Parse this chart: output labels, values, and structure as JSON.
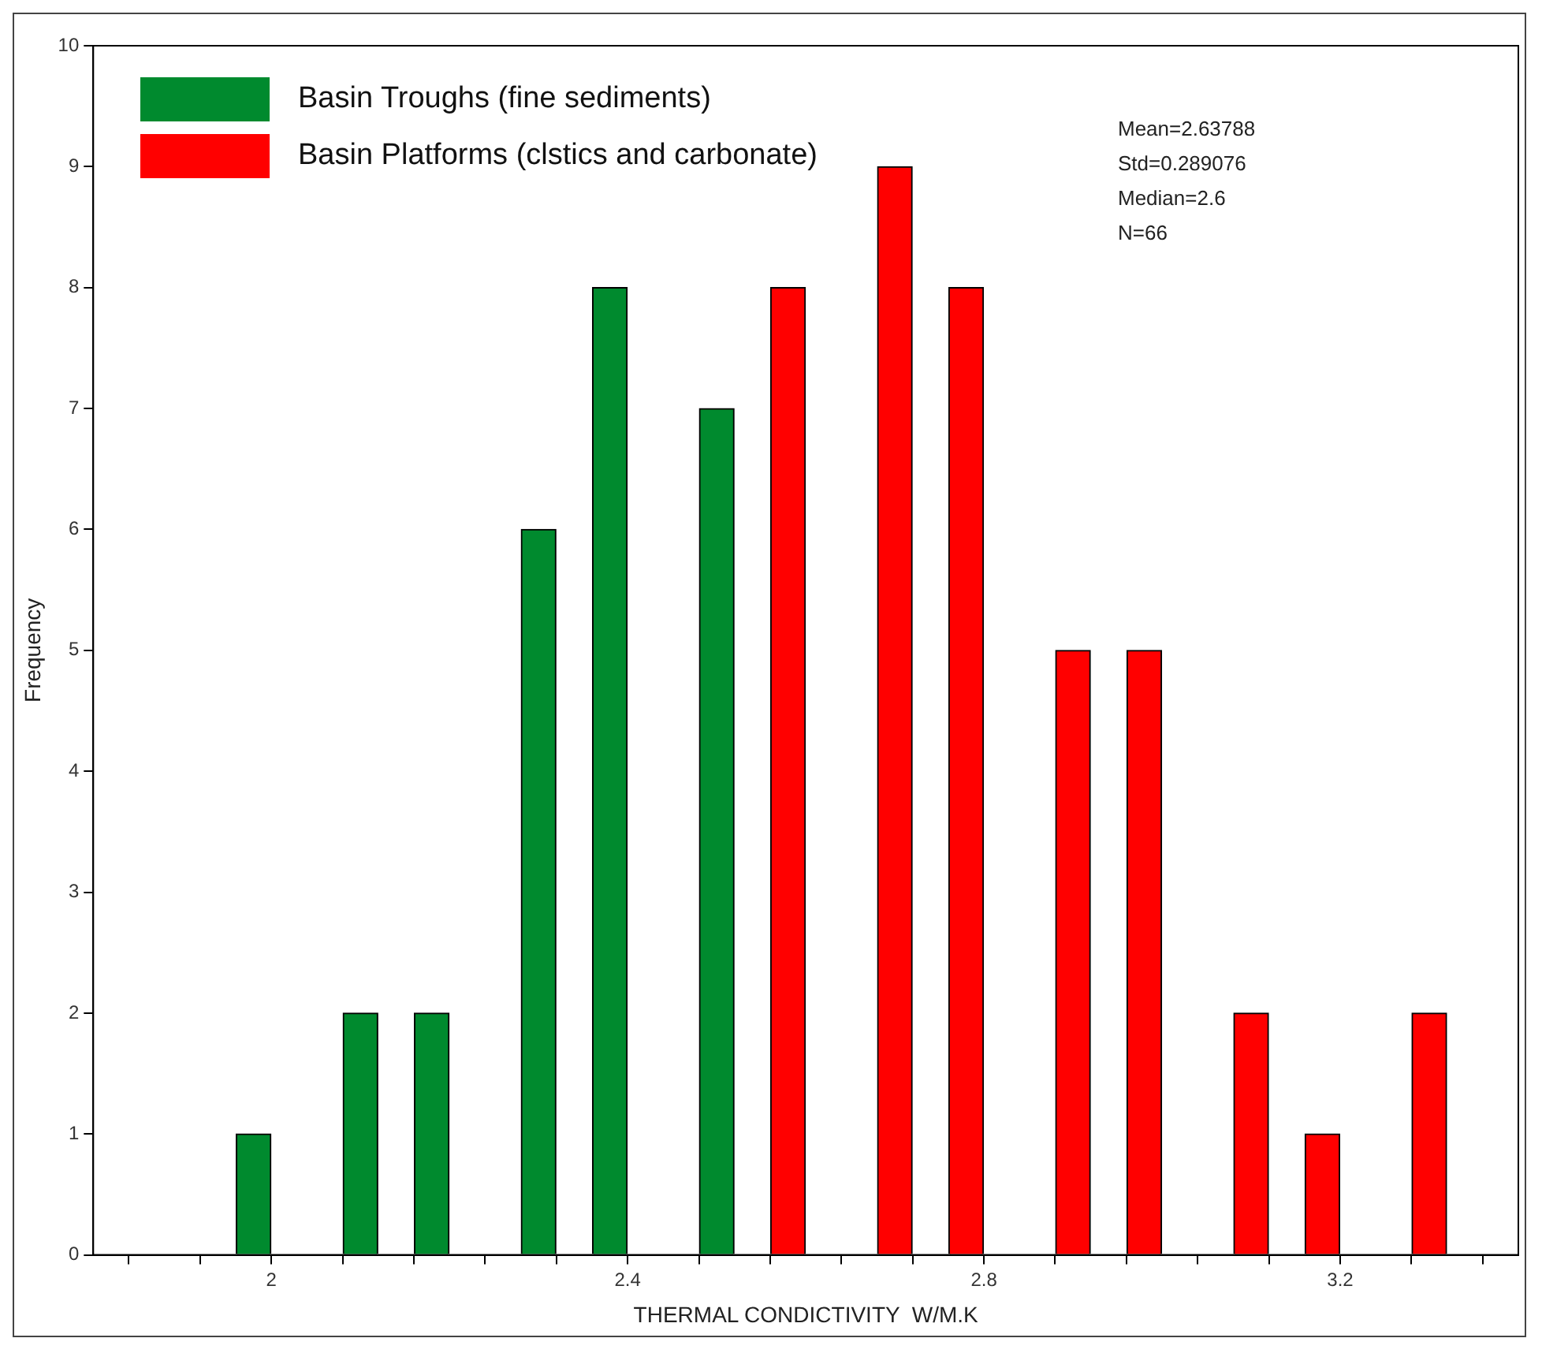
{
  "chart_data": {
    "type": "bar",
    "xlabel": "THERMAL CONDICTIVITY  W/M.K",
    "ylabel": "Frequency",
    "series": [
      {
        "name": "Basin Troughs (fine sediments)",
        "color": "#008a2e",
        "x": [
          1.98,
          2.1,
          2.18,
          2.3,
          2.38,
          2.5
        ],
        "values": [
          1,
          2,
          2,
          6,
          8,
          7
        ]
      },
      {
        "name": "Basin Platforms (clstics and carbonate)",
        "color": "#ff0000",
        "x": [
          2.58,
          2.7,
          2.78,
          2.9,
          2.98,
          3.1,
          3.18,
          3.3
        ],
        "values": [
          8,
          9,
          8,
          5,
          5,
          2,
          1,
          2
        ]
      }
    ],
    "xlim": [
      1.8,
      3.4
    ],
    "xticks": [
      {
        "value": 1.84,
        "label": null
      },
      {
        "value": 1.92,
        "label": null
      },
      2,
      {
        "value": 2.08,
        "label": null
      },
      {
        "value": 2.16,
        "label": null
      },
      {
        "value": 2.24,
        "label": null
      },
      {
        "value": 2.32,
        "label": null
      },
      2.4,
      {
        "value": 2.48,
        "label": null
      },
      {
        "value": 2.56,
        "label": null
      },
      {
        "value": 2.64,
        "label": null
      },
      {
        "value": 2.72,
        "label": null
      },
      2.8,
      {
        "value": 2.88,
        "label": null
      },
      {
        "value": 2.96,
        "label": null
      },
      {
        "value": 3.04,
        "label": null
      },
      {
        "value": 3.12,
        "label": null
      },
      3.2,
      {
        "value": 3.28,
        "label": null
      },
      {
        "value": 3.36,
        "label": null
      }
    ],
    "ylim": [
      0,
      10
    ],
    "yticks": [
      0,
      1,
      2,
      3,
      4,
      5,
      6,
      7,
      8,
      9,
      10
    ],
    "grid": false,
    "legend": "top left",
    "annotations": [
      "Mean=2.63788",
      "Std=0.289076",
      "Median=2.6",
      "N=66"
    ]
  }
}
